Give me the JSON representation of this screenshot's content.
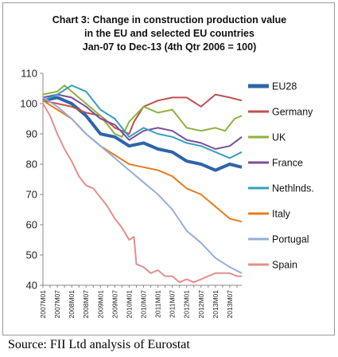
{
  "chart_data": {
    "type": "line",
    "title": "Chart 3: Change in construction production value",
    "subtitle_1": "in the EU and selected EU countries",
    "subtitle_2": "Jan-07 to Dec-13 (4th Qtr 2006 = 100)",
    "ylim": [
      40,
      110
    ],
    "yticks": [
      "40",
      "50",
      "60",
      "70",
      "80",
      "90",
      "100",
      "110"
    ],
    "xlabels": [
      "2007M01",
      "2007M07",
      "2008M01",
      "2008M07",
      "2009M01",
      "2009M07",
      "2010M01",
      "2010M07",
      "2011M01",
      "2011M07",
      "2012M01",
      "2012M07",
      "2013M01",
      "2013M07"
    ],
    "grid": false,
    "legend_position": "right",
    "series": [
      {
        "name": "EU28",
        "color": "#2e64a8",
        "width": 4,
        "points": [
          [
            0,
            101
          ],
          [
            6,
            102
          ],
          [
            12,
            100
          ],
          [
            18,
            96
          ],
          [
            24,
            90
          ],
          [
            30,
            89
          ],
          [
            36,
            86
          ],
          [
            42,
            87
          ],
          [
            48,
            85
          ],
          [
            54,
            84
          ],
          [
            60,
            81
          ],
          [
            66,
            80
          ],
          [
            72,
            78
          ],
          [
            78,
            80
          ],
          [
            83,
            79
          ]
        ]
      },
      {
        "name": "Germany",
        "color": "#c0504d",
        "width": 2,
        "points": [
          [
            0,
            101
          ],
          [
            6,
            100
          ],
          [
            12,
            99
          ],
          [
            18,
            97
          ],
          [
            24,
            96
          ],
          [
            30,
            92
          ],
          [
            36,
            90
          ],
          [
            38,
            94
          ],
          [
            42,
            99
          ],
          [
            48,
            101
          ],
          [
            54,
            102
          ],
          [
            60,
            102
          ],
          [
            66,
            99
          ],
          [
            72,
            103
          ],
          [
            78,
            102
          ],
          [
            83,
            101
          ]
        ]
      },
      {
        "name": "UK",
        "color": "#8db33f",
        "width": 2,
        "points": [
          [
            0,
            103
          ],
          [
            6,
            104
          ],
          [
            9,
            106
          ],
          [
            12,
            104
          ],
          [
            18,
            100
          ],
          [
            24,
            96
          ],
          [
            30,
            90
          ],
          [
            33,
            89
          ],
          [
            36,
            94
          ],
          [
            42,
            99
          ],
          [
            48,
            97
          ],
          [
            54,
            98
          ],
          [
            60,
            92
          ],
          [
            66,
            91
          ],
          [
            72,
            92
          ],
          [
            76,
            91
          ],
          [
            80,
            95
          ],
          [
            83,
            96
          ]
        ]
      },
      {
        "name": "France",
        "color": "#7a4f9c",
        "width": 2,
        "points": [
          [
            0,
            102
          ],
          [
            6,
            103
          ],
          [
            12,
            102
          ],
          [
            18,
            99
          ],
          [
            24,
            95
          ],
          [
            30,
            93
          ],
          [
            36,
            88
          ],
          [
            42,
            91
          ],
          [
            48,
            92
          ],
          [
            54,
            91
          ],
          [
            60,
            88
          ],
          [
            66,
            87
          ],
          [
            72,
            85
          ],
          [
            78,
            86
          ],
          [
            83,
            89
          ]
        ]
      },
      {
        "name": "Nethlnds.",
        "color": "#35a0bf",
        "width": 2,
        "points": [
          [
            0,
            101
          ],
          [
            6,
            103
          ],
          [
            12,
            106
          ],
          [
            18,
            104
          ],
          [
            24,
            98
          ],
          [
            30,
            95
          ],
          [
            36,
            89
          ],
          [
            42,
            92
          ],
          [
            48,
            90
          ],
          [
            54,
            89
          ],
          [
            60,
            87
          ],
          [
            66,
            86
          ],
          [
            72,
            84
          ],
          [
            78,
            82
          ],
          [
            83,
            84
          ]
        ]
      },
      {
        "name": "Italy",
        "color": "#e87b1e",
        "width": 2,
        "points": [
          [
            0,
            101
          ],
          [
            6,
            98
          ],
          [
            12,
            95
          ],
          [
            18,
            90
          ],
          [
            24,
            86
          ],
          [
            30,
            83
          ],
          [
            36,
            80
          ],
          [
            42,
            79
          ],
          [
            48,
            78
          ],
          [
            54,
            76
          ],
          [
            60,
            72
          ],
          [
            66,
            70
          ],
          [
            72,
            66
          ],
          [
            78,
            62
          ],
          [
            83,
            61
          ]
        ]
      },
      {
        "name": "Portugal",
        "color": "#94aedb",
        "width": 2,
        "points": [
          [
            0,
            102
          ],
          [
            6,
            99
          ],
          [
            12,
            95
          ],
          [
            18,
            90
          ],
          [
            24,
            86
          ],
          [
            30,
            82
          ],
          [
            36,
            78
          ],
          [
            42,
            74
          ],
          [
            48,
            70
          ],
          [
            54,
            65
          ],
          [
            60,
            58
          ],
          [
            66,
            54
          ],
          [
            72,
            49
          ],
          [
            78,
            46
          ],
          [
            83,
            44
          ]
        ]
      },
      {
        "name": "Spain",
        "color": "#e48f8b",
        "width": 2,
        "points": [
          [
            0,
            100
          ],
          [
            3,
            96
          ],
          [
            6,
            90
          ],
          [
            9,
            85
          ],
          [
            12,
            81
          ],
          [
            15,
            76
          ],
          [
            18,
            73
          ],
          [
            21,
            72
          ],
          [
            24,
            69
          ],
          [
            27,
            66
          ],
          [
            30,
            62
          ],
          [
            33,
            59
          ],
          [
            36,
            55
          ],
          [
            38,
            56
          ],
          [
            39,
            47
          ],
          [
            42,
            46
          ],
          [
            45,
            44
          ],
          [
            48,
            45
          ],
          [
            51,
            43
          ],
          [
            54,
            43
          ],
          [
            57,
            41
          ],
          [
            60,
            42
          ],
          [
            63,
            41
          ],
          [
            66,
            42
          ],
          [
            69,
            43
          ],
          [
            72,
            44
          ],
          [
            75,
            44
          ],
          [
            78,
            44
          ],
          [
            81,
            43
          ],
          [
            83,
            43
          ]
        ]
      }
    ]
  },
  "source": "Source: FII Ltd analysis of Eurostat"
}
